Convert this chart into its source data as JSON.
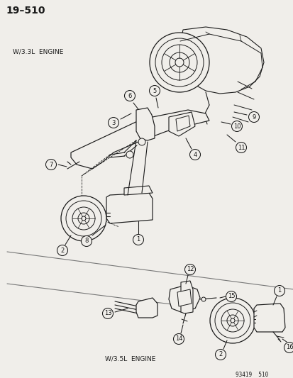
{
  "title": "19–510",
  "bg_color": "#f0eeea",
  "fig_width": 4.14,
  "fig_height": 5.33,
  "dpi": 100,
  "part_label_33l": "W/3.3L  ENGINE",
  "part_label_35l": "W/3.5L  ENGINE",
  "footer": "93419  510",
  "line_color": "#1a1a1a",
  "label_color": "#1a1a1a"
}
